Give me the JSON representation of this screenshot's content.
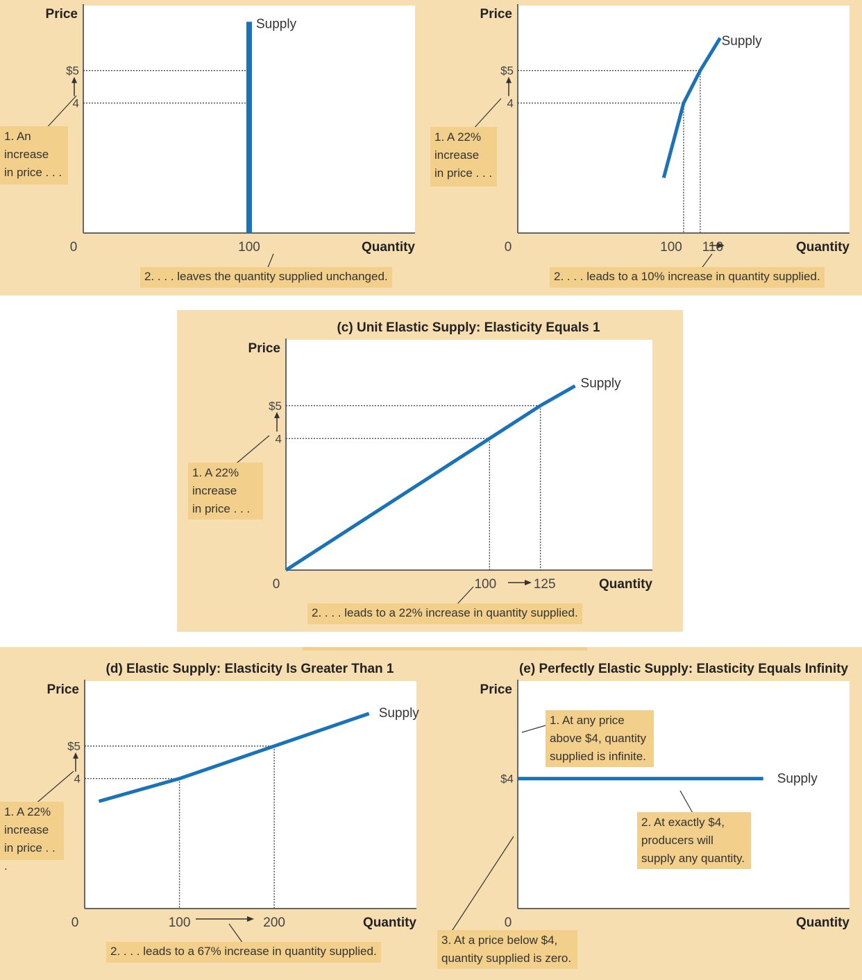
{
  "colors": {
    "panel": "#f6deb0",
    "annotation": "#f2cf8a",
    "supply": "#1a72b8",
    "plot": "#ffffff",
    "axis": "#666666"
  },
  "chart_data": [
    {
      "id": "a",
      "type": "line",
      "title": "",
      "xlabel": "Quantity",
      "ylabel": "Price",
      "xlim": [
        0,
        200
      ],
      "ylim": [
        0,
        7
      ],
      "series": [
        {
          "name": "Supply",
          "x": [
            100,
            100
          ],
          "y": [
            0,
            6.5
          ]
        }
      ],
      "reference_points": [
        {
          "x": 100,
          "y": 4
        },
        {
          "x": 100,
          "y": 5
        }
      ],
      "x_ticks": [
        "0",
        "100"
      ],
      "y_ticks": [
        "$5",
        "4"
      ],
      "annotations": [
        "1. An\nincrease\nin price . . .",
        "2. . . . leaves the quantity supplied unchanged."
      ]
    },
    {
      "id": "b",
      "type": "line",
      "title": "",
      "xlabel": "Quantity",
      "ylabel": "Price",
      "xlim": [
        0,
        200
      ],
      "ylim": [
        0,
        7
      ],
      "series": [
        {
          "name": "Supply",
          "x": [
            88,
            100,
            110,
            122
          ],
          "y": [
            1.7,
            4,
            5,
            6
          ]
        }
      ],
      "reference_points": [
        {
          "x": 100,
          "y": 4
        },
        {
          "x": 110,
          "y": 5
        }
      ],
      "x_ticks": [
        "0",
        "100",
        "110"
      ],
      "y_ticks": [
        "$5",
        "4"
      ],
      "annotations": [
        "1. A 22%\nincrease\nin price . . .",
        "2. . . . leads to a 10% increase in quantity supplied."
      ]
    },
    {
      "id": "c",
      "type": "line",
      "title": "(c) Unit Elastic Supply: Elasticity Equals 1",
      "xlabel": "Quantity",
      "ylabel": "Price",
      "xlim": [
        0,
        180
      ],
      "ylim": [
        0,
        7
      ],
      "series": [
        {
          "name": "Supply",
          "x": [
            0,
            100,
            125,
            142
          ],
          "y": [
            0,
            4,
            5,
            5.6
          ]
        }
      ],
      "reference_points": [
        {
          "x": 100,
          "y": 4
        },
        {
          "x": 125,
          "y": 5
        }
      ],
      "x_ticks": [
        "0",
        "100",
        "125"
      ],
      "y_ticks": [
        "$5",
        "4"
      ],
      "annotations": [
        "1. A 22%\nincrease\nin price . . .",
        "2.  . . . leads to a 22% increase in quantity supplied."
      ]
    },
    {
      "id": "d",
      "type": "line",
      "title": "(d) Elastic Supply: Elasticity Is Greater Than 1",
      "xlabel": "Quantity",
      "ylabel": "Price",
      "xlim": [
        0,
        350
      ],
      "ylim": [
        0,
        7
      ],
      "series": [
        {
          "name": "Supply",
          "x": [
            15,
            100,
            200,
            300
          ],
          "y": [
            3.3,
            4,
            5,
            6
          ]
        }
      ],
      "reference_points": [
        {
          "x": 100,
          "y": 4
        },
        {
          "x": 200,
          "y": 5
        }
      ],
      "x_ticks": [
        "0",
        "100",
        "200"
      ],
      "y_ticks": [
        "$5",
        "4"
      ],
      "annotations": [
        "1. A 22%\nincrease\nin price . . .",
        "2. . . . leads to a 67% increase in quantity supplied."
      ]
    },
    {
      "id": "e",
      "type": "line",
      "title": "(e) Perfectly Elastic Supply: Elasticity Equals Infinity",
      "xlabel": "Quantity",
      "ylabel": "Price",
      "xlim": [
        0,
        100
      ],
      "ylim": [
        0,
        7
      ],
      "series": [
        {
          "name": "Supply",
          "x": [
            0,
            74
          ],
          "y": [
            4,
            4
          ]
        }
      ],
      "x_ticks": [
        "0"
      ],
      "y_ticks": [
        "$4"
      ],
      "annotations": [
        "1. At any price\nabove $4, quantity\nsupplied is infinite.",
        "2. At exactly $4,\nproducers will\nsupply any quantity.",
        "3. At a price below $4,\nquantity supplied is zero."
      ]
    }
  ]
}
